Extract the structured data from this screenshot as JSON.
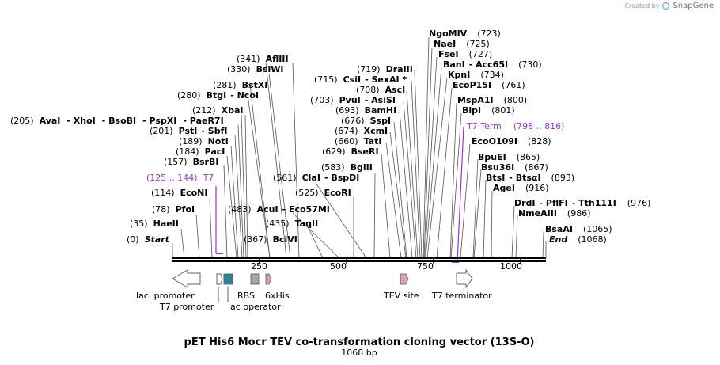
{
  "credit": {
    "created_by": "Created by",
    "brand": "SnapGene"
  },
  "title": "pET His6 Mocr TEV co-transformation cloning vector (13S-O)",
  "subtitle": "1068 bp",
  "ruler": {
    "ticks": [
      "250",
      "500",
      "750",
      "1000"
    ]
  },
  "enzymes": {
    "start": {
      "pos": "(0)",
      "name": "Start"
    },
    "end": {
      "name": "End",
      "pos": "(1068)"
    },
    "haeii": {
      "pos": "(35)",
      "name": "HaeII"
    },
    "pfoi": {
      "pos": "(78)",
      "name": "PfoI"
    },
    "econi": {
      "pos": "(114)",
      "name": "EcoNI"
    },
    "bsrbi": {
      "pos": "(157)",
      "name": "BsrBI"
    },
    "paci": {
      "pos": "(184)",
      "name": "PacI"
    },
    "noti": {
      "pos": "(189)",
      "name": "NotI"
    },
    "psti": {
      "pos": "(201)",
      "name": "PstI",
      "name2": "- SbfI"
    },
    "avai": {
      "pos": "(205)",
      "name": "AvaI",
      "name2": "- XhoI",
      "name3": "- BsoBI",
      "name4": "- PspXI",
      "name5": "- PaeR7I"
    },
    "xbai": {
      "pos": "(212)",
      "name": "XbaI"
    },
    "btgi": {
      "pos": "(280)",
      "name": "BtgI",
      "name2": "- NcoI"
    },
    "bstxi": {
      "pos": "(281)",
      "name": "BstXI"
    },
    "bsiwi": {
      "pos": "(330)",
      "name": "BsiWI"
    },
    "aflIII": {
      "pos": "(341)",
      "name": "AflIII"
    },
    "bcivi": {
      "pos": "(367)",
      "name": "BciVI"
    },
    "taqii": {
      "pos": "(435)",
      "name": "TaqII"
    },
    "acui": {
      "pos": "(483)",
      "name": "AcuI",
      "name2": "- Eco57MI"
    },
    "ecori": {
      "pos": "(525)",
      "name": "EcoRI"
    },
    "clai": {
      "pos": "(561)",
      "name": "ClaI",
      "name2": "- BspDI"
    },
    "bglii": {
      "pos": "(583)",
      "name": "BglII"
    },
    "bseri": {
      "pos": "(629)",
      "name": "BseRI"
    },
    "tati": {
      "pos": "(660)",
      "name": "TatI"
    },
    "xcmi": {
      "pos": "(674)",
      "name": "XcmI"
    },
    "sspi": {
      "pos": "(676)",
      "name": "SspI"
    },
    "bamhi": {
      "pos": "(693)",
      "name": "BamHI"
    },
    "pvui": {
      "pos": "(703)",
      "name": "PvuI",
      "name2": "- AsiSI"
    },
    "asci": {
      "pos": "(708)",
      "name": "AscI"
    },
    "csii": {
      "pos": "(715)",
      "name": "CsiI",
      "name2": "- SexAI *"
    },
    "draiii": {
      "pos": "(719)",
      "name": "DraIII"
    },
    "ngomiv": {
      "name": "NgoMIV",
      "pos": "(723)"
    },
    "naei": {
      "name": "NaeI",
      "pos": "(725)"
    },
    "fsei": {
      "name": "FseI",
      "pos": "(727)"
    },
    "bani": {
      "name": "BanI",
      "name2": "- Acc65I",
      "pos": "(730)"
    },
    "kpni": {
      "name": "KpnI",
      "pos": "(734)"
    },
    "ecop15i": {
      "name": "EcoP15I",
      "pos": "(761)"
    },
    "mspa1i": {
      "name": "MspA1I",
      "pos": "(800)"
    },
    "blpi": {
      "name": "BlpI",
      "pos": "(801)"
    },
    "ecoo109i": {
      "name": "EcoO109I",
      "pos": "(828)"
    },
    "bpuei": {
      "name": "BpuEI",
      "pos": "(865)"
    },
    "bsu36i": {
      "name": "Bsu36I",
      "pos": "(867)"
    },
    "btsi": {
      "name": "BtsI",
      "name2": "- BtsαI",
      "pos": "(893)"
    },
    "agei": {
      "name": "AgeI",
      "pos": "(916)"
    },
    "drdi": {
      "name": "DrdI",
      "name2": "- PflFI",
      "name3": "- Tth111I",
      "pos": "(976)"
    },
    "nmeaiii": {
      "name": "NmeAIII",
      "pos": "(986)"
    },
    "bsaai": {
      "name": "BsaAI",
      "pos": "(1065)"
    }
  },
  "primers": {
    "t7": {
      "range": "(125 .. 144)",
      "name": "T7"
    },
    "t7_term": {
      "name": "T7 Term",
      "range": "(798 .. 816)"
    }
  },
  "features": {
    "laci_promoter": "lacI promoter",
    "t7_promoter": "T7 promoter",
    "rbs": "RBS",
    "lac_operator": "lac operator",
    "his6": "6xHis",
    "tev_site": "TEV site",
    "t7_terminator": "T7 terminator"
  },
  "colors": {
    "primer": "#9933cc",
    "lac_operator": "#2b7f98",
    "rbs": "#a6a6a6",
    "his6": "#d9a0b8",
    "tev_site": "#d9a0b8",
    "arrow": "#ffffff"
  }
}
